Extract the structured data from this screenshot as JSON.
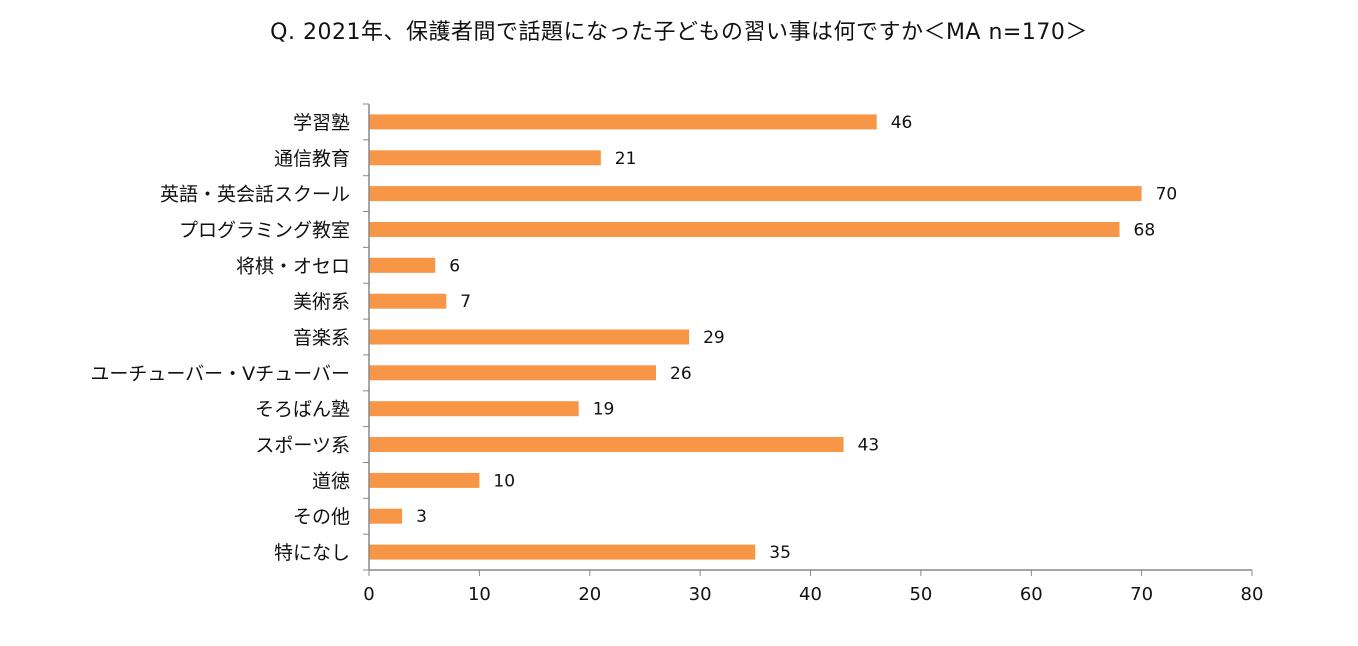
{
  "chart_data": {
    "type": "bar",
    "orientation": "horizontal",
    "title": "Q. 2021年、保護者間で話題になった子どもの習い事は何ですか＜MA n=170＞",
    "categories": [
      "学習塾",
      "通信教育",
      "英語・英会話スクール",
      "プログラミング教室",
      "将棋・オセロ",
      "美術系",
      "音楽系",
      "ユーチューバー・Vチューバー",
      "そろばん塾",
      "スポーツ系",
      "道徳",
      "その他",
      "特になし"
    ],
    "values": [
      46,
      21,
      70,
      68,
      6,
      7,
      29,
      26,
      19,
      43,
      10,
      3,
      35
    ],
    "xlim": [
      0,
      80
    ],
    "xticks": [
      0,
      10,
      20,
      30,
      40,
      50,
      60,
      70,
      80
    ],
    "xlabel": "",
    "ylabel": "",
    "grid": false,
    "legend": "none",
    "data_labels": true,
    "bar_color": "#F79646",
    "axis_color": "#888888"
  }
}
